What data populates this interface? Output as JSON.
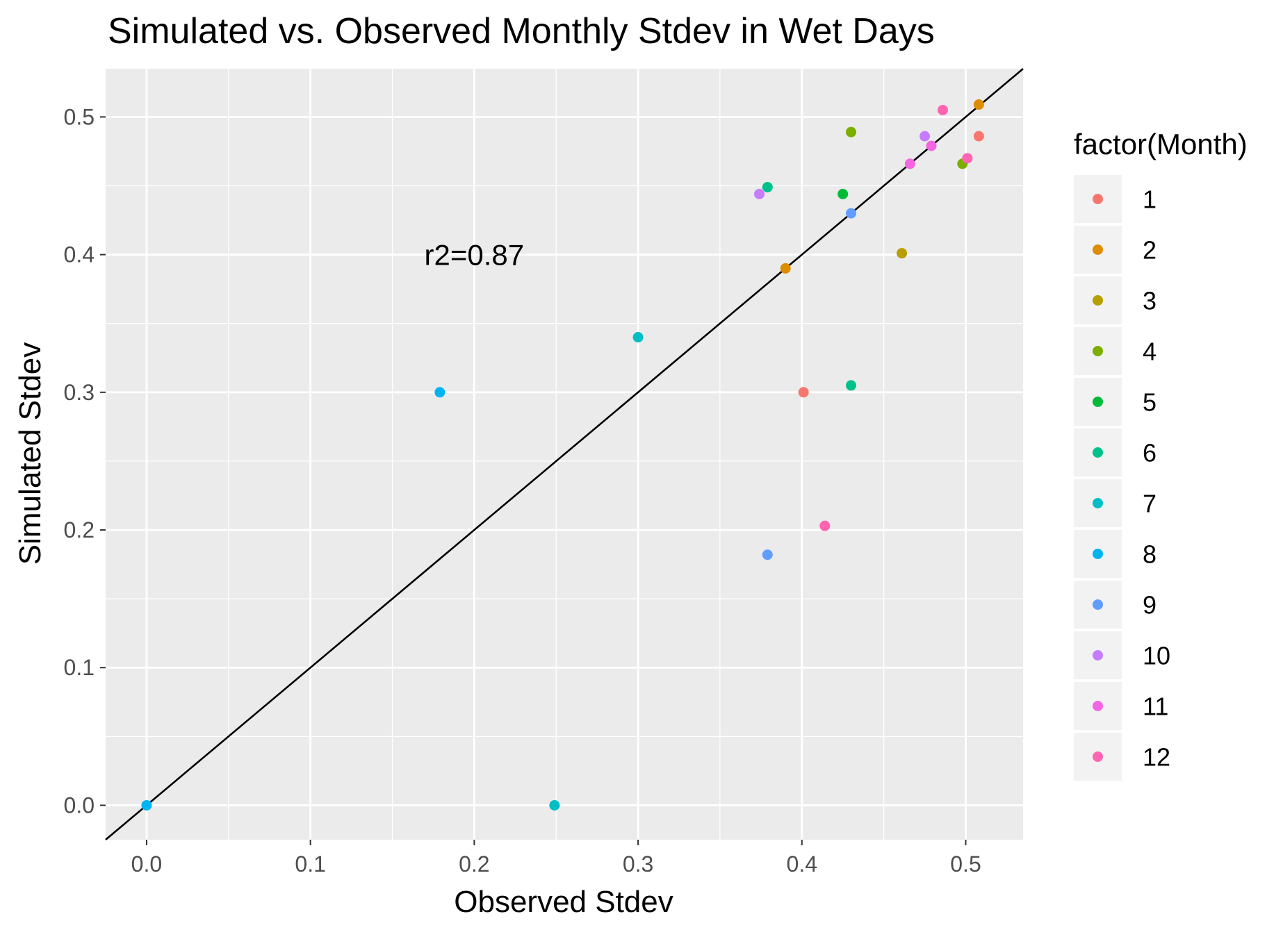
{
  "chart_data": {
    "type": "scatter",
    "title": "Simulated vs. Observed Monthly Stdev in Wet Days",
    "xlabel": "Observed Stdev",
    "ylabel": "Simulated Stdev",
    "xlim": [
      -0.025,
      0.535
    ],
    "ylim": [
      -0.025,
      0.535
    ],
    "x_ticks": [
      {
        "value": 0.0,
        "label": "0.0"
      },
      {
        "value": 0.1,
        "label": "0.1"
      },
      {
        "value": 0.2,
        "label": "0.2"
      },
      {
        "value": 0.3,
        "label": "0.3"
      },
      {
        "value": 0.4,
        "label": "0.4"
      },
      {
        "value": 0.5,
        "label": "0.5"
      }
    ],
    "y_ticks": [
      {
        "value": 0.0,
        "label": "0.0"
      },
      {
        "value": 0.1,
        "label": "0.1"
      },
      {
        "value": 0.2,
        "label": "0.2"
      },
      {
        "value": 0.3,
        "label": "0.3"
      },
      {
        "value": 0.4,
        "label": "0.4"
      },
      {
        "value": 0.5,
        "label": "0.5"
      }
    ],
    "grid": true,
    "background_color": "#ebebeb",
    "reference_line": {
      "slope": 1,
      "intercept": 0,
      "color": "#000000"
    },
    "annotation": {
      "text": "r2=0.87",
      "x": 0.2,
      "y": 0.4
    },
    "legend": {
      "title": "factor(Month)",
      "position": "right"
    },
    "series": [
      {
        "name": "1",
        "color": "#F8766D",
        "points": [
          [
            0.401,
            0.3
          ],
          [
            0.508,
            0.486
          ]
        ]
      },
      {
        "name": "2",
        "color": "#DE8C00",
        "points": [
          [
            0.39,
            0.39
          ],
          [
            0.508,
            0.509
          ]
        ]
      },
      {
        "name": "3",
        "color": "#B79F00",
        "points": [
          [
            0.461,
            0.401
          ]
        ]
      },
      {
        "name": "4",
        "color": "#7CAE00",
        "points": [
          [
            0.43,
            0.489
          ],
          [
            0.498,
            0.466
          ]
        ]
      },
      {
        "name": "5",
        "color": "#00BA38",
        "points": [
          [
            0.425,
            0.444
          ]
        ]
      },
      {
        "name": "6",
        "color": "#00C08B",
        "points": [
          [
            0.379,
            0.449
          ],
          [
            0.43,
            0.305
          ]
        ]
      },
      {
        "name": "7",
        "color": "#00BFC4",
        "points": [
          [
            0.3,
            0.34
          ],
          [
            0.249,
            0.0
          ]
        ]
      },
      {
        "name": "8",
        "color": "#00B4F0",
        "points": [
          [
            0.179,
            0.3
          ],
          [
            0.0,
            0.0
          ]
        ]
      },
      {
        "name": "9",
        "color": "#619CFF",
        "points": [
          [
            0.43,
            0.43
          ],
          [
            0.379,
            0.182
          ]
        ]
      },
      {
        "name": "10",
        "color": "#C77CFF",
        "points": [
          [
            0.374,
            0.444
          ],
          [
            0.475,
            0.486
          ]
        ]
      },
      {
        "name": "11",
        "color": "#F564E3",
        "points": [
          [
            0.466,
            0.466
          ],
          [
            0.479,
            0.479
          ]
        ]
      },
      {
        "name": "12",
        "color": "#FF64B0",
        "points": [
          [
            0.486,
            0.505
          ],
          [
            0.501,
            0.47
          ],
          [
            0.414,
            0.203
          ]
        ]
      }
    ]
  }
}
